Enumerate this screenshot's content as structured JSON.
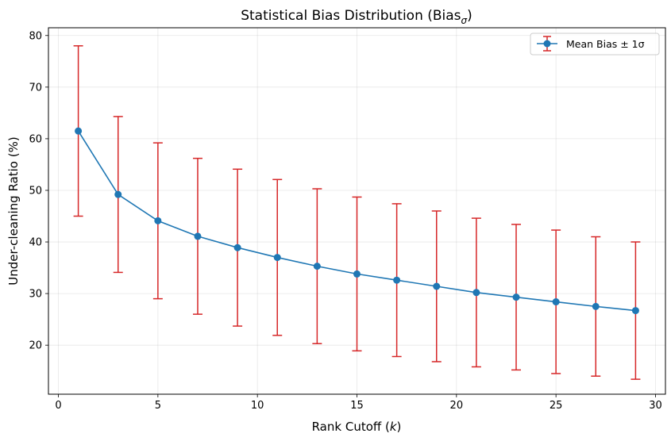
{
  "chart_data": {
    "type": "line",
    "title_main": "Statistical Bias Distribution (Bias",
    "title_sub": "σ",
    "title_close": ")",
    "xlabel_main": "Rank Cutoff (",
    "xlabel_var": "k",
    "xlabel_close": ")",
    "ylabel": "Under-cleaning Ratio (%)",
    "xlim": [
      -0.5,
      30.5
    ],
    "ylim": [
      10.5,
      81.5
    ],
    "xticks": [
      0,
      5,
      10,
      15,
      20,
      25,
      30
    ],
    "yticks": [
      20,
      30,
      40,
      50,
      60,
      70,
      80
    ],
    "grid": true,
    "legend_position": "top-right",
    "series": [
      {
        "name": "Mean Bias ± 1σ",
        "line_color": "#1f77b4",
        "errorbar_color": "#d62728",
        "x": [
          1,
          3,
          5,
          7,
          9,
          11,
          13,
          15,
          17,
          19,
          21,
          23,
          25,
          27,
          29
        ],
        "y": [
          61.5,
          49.2,
          44.1,
          41.1,
          38.9,
          37.0,
          35.3,
          33.8,
          32.6,
          31.4,
          30.2,
          29.3,
          28.4,
          27.5,
          26.7
        ],
        "error": [
          16.5,
          15.1,
          15.1,
          15.1,
          15.2,
          15.1,
          15.0,
          14.9,
          14.8,
          14.6,
          14.4,
          14.1,
          13.9,
          13.5,
          13.3
        ]
      }
    ]
  }
}
